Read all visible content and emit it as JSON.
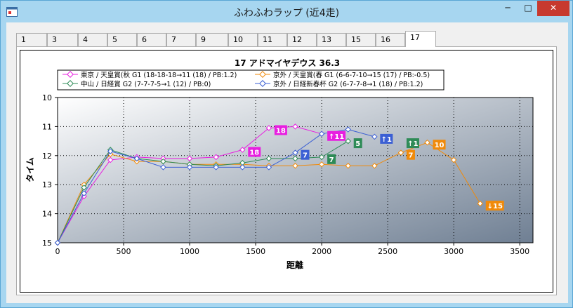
{
  "window": {
    "title": "ふわふわラップ (近4走)",
    "minimize": "─",
    "maximize": "□",
    "close": "✕"
  },
  "tabs": [
    {
      "label": "1",
      "active": false
    },
    {
      "label": "3",
      "active": false
    },
    {
      "label": "4",
      "active": false
    },
    {
      "label": "5",
      "active": false
    },
    {
      "label": "6",
      "active": false
    },
    {
      "label": "7",
      "active": false
    },
    {
      "label": "9",
      "active": false
    },
    {
      "label": "10",
      "active": false
    },
    {
      "label": "11",
      "active": false
    },
    {
      "label": "12",
      "active": false
    },
    {
      "label": "13",
      "active": false
    },
    {
      "label": "15",
      "active": false
    },
    {
      "label": "16",
      "active": false
    },
    {
      "label": "17",
      "active": true
    }
  ],
  "chart_data": {
    "type": "line",
    "title": "17 アドマイヤデウス 36.3",
    "xlabel": "距離",
    "ylabel": "タイム",
    "xlim": [
      0,
      3600
    ],
    "ylim": [
      15,
      10
    ],
    "y_inverted": true,
    "xticks": [
      "0",
      "500",
      "1000",
      "1500",
      "2000",
      "2500",
      "3000",
      "3500"
    ],
    "yticks": [
      "10",
      "11",
      "12",
      "13",
      "14",
      "15"
    ],
    "grid": true,
    "legend_position": "top",
    "series": [
      {
        "name": "東京 / 天皇賞(秋  G1 (18-18-18→11 (18) / PB:1.2)",
        "color": "#e81ee0",
        "x": [
          0,
          200,
          400,
          600,
          800,
          1000,
          1200,
          1400,
          1600,
          1800,
          2000
        ],
        "y": [
          15.0,
          13.4,
          12.15,
          12.05,
          12.1,
          12.1,
          12.05,
          11.8,
          11.05,
          11.0,
          11.25
        ],
        "labels": [
          {
            "x": 1400,
            "y": 11.8,
            "text": "18"
          },
          {
            "x": 1600,
            "y": 11.05,
            "text": "18"
          },
          {
            "x": 2000,
            "y": 11.25,
            "text": "↑11"
          }
        ]
      },
      {
        "name": "京外 / 天皇賞(春  G1 (6-6-7-10→15 (17) / PB:-0.5)",
        "color": "#f08a0a",
        "x": [
          0,
          200,
          400,
          600,
          800,
          1000,
          1200,
          1400,
          1600,
          1800,
          2000,
          2200,
          2400,
          2600,
          2800,
          3000,
          3200
        ],
        "y": [
          15.0,
          13.0,
          11.95,
          12.2,
          12.2,
          12.3,
          12.3,
          12.3,
          12.35,
          12.35,
          12.3,
          12.35,
          12.35,
          11.9,
          11.55,
          12.15,
          13.65
        ],
        "labels": [
          {
            "x": 2600,
            "y": 11.9,
            "text": "7"
          },
          {
            "x": 2800,
            "y": 11.55,
            "text": "10"
          },
          {
            "x": 3200,
            "y": 13.65,
            "text": "↓15"
          }
        ]
      },
      {
        "name": "中山 / 日経賞  G2 (7-7-7-5→1 (12) / PB:0)",
        "color": "#2e8b57",
        "x": [
          0,
          200,
          400,
          600,
          800,
          1000,
          1200,
          1400,
          1600,
          1800,
          2000,
          2200
        ],
        "y": [
          15.0,
          13.1,
          11.8,
          12.1,
          12.2,
          12.3,
          12.35,
          12.25,
          12.1,
          12.1,
          12.05,
          11.5
        ],
        "labels": [
          {
            "x": 2000,
            "y": 12.05,
            "text": "7"
          },
          {
            "x": 2200,
            "y": 11.5,
            "text": "5"
          },
          {
            "x": 2600,
            "y": 11.5,
            "text": "↑1"
          }
        ]
      },
      {
        "name": "京外 / 日経新春杯  G2 (6-7-7-8→1 (18) / PB:1.2)",
        "color": "#3b5fd4",
        "x": [
          0,
          200,
          400,
          600,
          800,
          1000,
          1200,
          1400,
          1600,
          1800,
          2000,
          2200,
          2400
        ],
        "y": [
          15.0,
          13.3,
          11.85,
          12.1,
          12.4,
          12.4,
          12.4,
          12.4,
          12.4,
          11.9,
          11.25,
          11.1,
          11.35
        ],
        "labels": [
          {
            "x": 1800,
            "y": 11.9,
            "text": "7"
          },
          {
            "x": 2400,
            "y": 11.35,
            "text": "↑1"
          }
        ]
      }
    ]
  }
}
